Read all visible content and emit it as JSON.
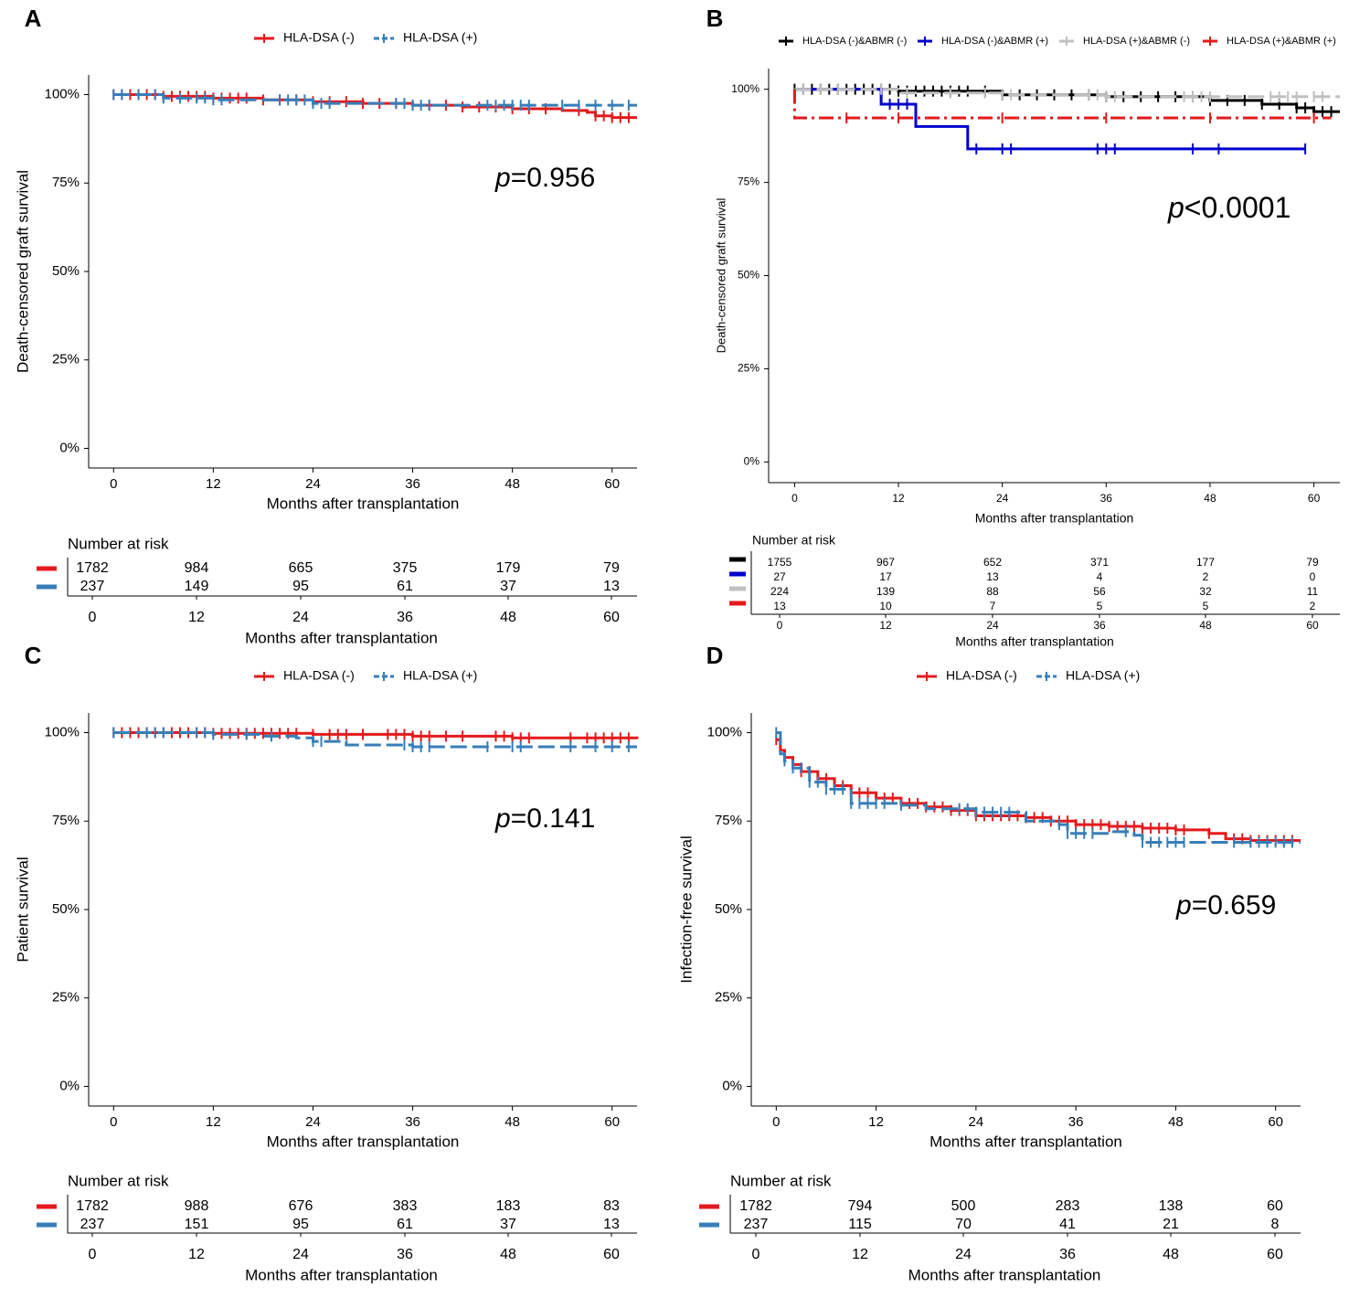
{
  "figure": {
    "colors": {
      "red": "#e41a1c",
      "blue_steel": "#377eb8",
      "black": "#000000",
      "blue": "#0000cc",
      "gray": "#c0c0c0"
    }
  },
  "chart_data": [
    {
      "panel": "A",
      "type": "line",
      "subtype": "kaplan-meier",
      "ylabel": "Death-censored graft survival",
      "xlabel": "Months after transplantation",
      "xticks": [
        0,
        12,
        24,
        36,
        48,
        60
      ],
      "xlim": [
        -3,
        63
      ],
      "yticks": [
        "0%",
        "25%",
        "50%",
        "75%",
        "100%"
      ],
      "ylim": [
        0,
        1
      ],
      "pvalue_prefix": "p",
      "pvalue_text": "=0.956",
      "risk_table_title": "Number at risk",
      "series": [
        {
          "name": "HLA-DSA (-)",
          "color": "#e41a1c",
          "dash": "solid",
          "points": [
            [
              0,
              1.0
            ],
            [
              6,
              0.995
            ],
            [
              12,
              0.99
            ],
            [
              18,
              0.985
            ],
            [
              24,
              0.98
            ],
            [
              30,
              0.975
            ],
            [
              36,
              0.97
            ],
            [
              42,
              0.965
            ],
            [
              48,
              0.96
            ],
            [
              54,
              0.955
            ],
            [
              57,
              0.95
            ],
            [
              58,
              0.94
            ],
            [
              60,
              0.935
            ],
            [
              63,
              0.935
            ]
          ],
          "censor_x": [
            0,
            1,
            2,
            3,
            4,
            5,
            6,
            7,
            8,
            9,
            10,
            11,
            12,
            13,
            14,
            15,
            16,
            18,
            20,
            22,
            24,
            26,
            28,
            30,
            32,
            34,
            36,
            38,
            40,
            42,
            44,
            46,
            48,
            50,
            52,
            56,
            58,
            59,
            60,
            61,
            62
          ],
          "risk": [
            "1782",
            "984",
            "665",
            "375",
            "179",
            "79"
          ]
        },
        {
          "name": "HLA-DSA (+)",
          "color": "#377eb8",
          "dash": "dash",
          "points": [
            [
              0,
              1.0
            ],
            [
              6,
              0.99
            ],
            [
              12,
              0.985
            ],
            [
              24,
              0.975
            ],
            [
              36,
              0.97
            ],
            [
              63,
              0.97
            ]
          ],
          "censor_x": [
            0,
            1,
            3,
            5,
            6,
            8,
            10,
            11,
            12,
            13,
            20,
            21,
            22,
            23,
            24,
            25,
            26,
            34,
            35,
            36,
            37,
            38,
            45,
            46,
            47,
            48,
            49,
            50,
            54,
            56,
            58,
            60,
            62
          ],
          "risk": [
            "237",
            "149",
            "95",
            "61",
            "37",
            "13"
          ]
        }
      ]
    },
    {
      "panel": "B",
      "type": "line",
      "subtype": "kaplan-meier",
      "ylabel": "Death-censored graft survival",
      "xlabel": "Months after transplantation",
      "xticks": [
        0,
        12,
        24,
        36,
        48,
        60
      ],
      "xlim": [
        -3,
        63
      ],
      "yticks": [
        "0%",
        "25%",
        "50%",
        "75%",
        "100%"
      ],
      "ylim": [
        0,
        1
      ],
      "pvalue_prefix": "p",
      "pvalue_text": "<0.0001",
      "risk_table_title": "Number at risk",
      "series": [
        {
          "name": "HLA-DSA (-)&ABMR (-)",
          "color": "#000000",
          "dash": "solid",
          "points": [
            [
              0,
              1.0
            ],
            [
              12,
              0.995
            ],
            [
              24,
              0.985
            ],
            [
              36,
              0.98
            ],
            [
              48,
              0.97
            ],
            [
              54,
              0.96
            ],
            [
              58,
              0.95
            ],
            [
              60,
              0.94
            ],
            [
              63,
              0.94
            ]
          ],
          "censor_x": [
            0,
            1,
            2,
            3,
            4,
            5,
            6,
            7,
            8,
            9,
            10,
            11,
            12,
            13,
            14,
            15,
            16,
            17,
            18,
            19,
            20,
            22,
            24,
            26,
            28,
            30,
            32,
            34,
            36,
            38,
            40,
            42,
            44,
            46,
            48,
            50,
            52,
            54,
            56,
            58,
            59,
            60,
            61,
            62
          ],
          "risk": [
            "1755",
            "967",
            "652",
            "371",
            "177",
            "79"
          ]
        },
        {
          "name": "HLA-DSA (-)&ABMR (+)",
          "color": "#0000cc",
          "dash": "solid",
          "points": [
            [
              0,
              1.0
            ],
            [
              10,
              1.0
            ],
            [
              10,
              0.96
            ],
            [
              14,
              0.96
            ],
            [
              14,
              0.9
            ],
            [
              20,
              0.9
            ],
            [
              20,
              0.84
            ],
            [
              59,
              0.84
            ]
          ],
          "censor_x": [
            11,
            12,
            13,
            21,
            24,
            25,
            35,
            36,
            37,
            46,
            49,
            59
          ],
          "risk": [
            "27",
            "17",
            "13",
            "4",
            "2",
            "0"
          ]
        },
        {
          "name": "HLA-DSA (+)&ABMR (-)",
          "color": "#c0c0c0",
          "dash": "dash",
          "points": [
            [
              0,
              1.0
            ],
            [
              12,
              0.99
            ],
            [
              24,
              0.985
            ],
            [
              36,
              0.98
            ],
            [
              63,
              0.98
            ]
          ],
          "censor_x": [
            1,
            3,
            5,
            10,
            13,
            18,
            22,
            24,
            25,
            34,
            35,
            36,
            37,
            45,
            46,
            47,
            48,
            55,
            56,
            57,
            58,
            60,
            61
          ],
          "risk": [
            "224",
            "139",
            "88",
            "56",
            "32",
            "11"
          ]
        },
        {
          "name": "HLA-DSA (+)&ABMR (+)",
          "color": "#e41a1c",
          "dash": "dashdot",
          "points": [
            [
              0,
              1.0
            ],
            [
              0,
              0.923
            ],
            [
              62,
              0.923
            ]
          ],
          "censor_x": [
            6,
            12,
            24,
            36,
            48,
            60
          ],
          "risk": [
            "13",
            "10",
            "7",
            "5",
            "5",
            "2"
          ]
        }
      ]
    },
    {
      "panel": "C",
      "type": "line",
      "subtype": "kaplan-meier",
      "ylabel": "Patient survival",
      "xlabel": "Months after transplantation",
      "xticks": [
        0,
        12,
        24,
        36,
        48,
        60
      ],
      "xlim": [
        -3,
        63
      ],
      "yticks": [
        "0%",
        "25%",
        "50%",
        "75%",
        "100%"
      ],
      "ylim": [
        0,
        1
      ],
      "pvalue_prefix": "p",
      "pvalue_text": "=0.141",
      "risk_table_title": "Number at risk",
      "series": [
        {
          "name": "HLA-DSA (-)",
          "color": "#e41a1c",
          "dash": "solid",
          "points": [
            [
              0,
              1.0
            ],
            [
              12,
              0.998
            ],
            [
              24,
              0.995
            ],
            [
              36,
              0.99
            ],
            [
              48,
              0.985
            ],
            [
              63,
              0.982
            ]
          ],
          "censor_x": [
            0,
            1,
            2,
            3,
            4,
            5,
            6,
            7,
            8,
            9,
            10,
            11,
            12,
            13,
            14,
            15,
            16,
            17,
            18,
            19,
            20,
            21,
            22,
            24,
            26,
            27,
            28,
            30,
            33,
            34,
            35,
            36,
            37,
            38,
            40,
            42,
            46,
            47,
            48,
            49,
            50,
            55,
            57,
            58,
            59,
            60,
            61,
            62
          ],
          "risk": [
            "1782",
            "988",
            "676",
            "383",
            "183",
            "83"
          ]
        },
        {
          "name": "HLA-DSA (+)",
          "color": "#377eb8",
          "dash": "dash",
          "points": [
            [
              0,
              1.0
            ],
            [
              12,
              0.995
            ],
            [
              18,
              0.99
            ],
            [
              22,
              0.985
            ],
            [
              24,
              0.975
            ],
            [
              28,
              0.965
            ],
            [
              36,
              0.96
            ],
            [
              63,
              0.96
            ]
          ],
          "censor_x": [
            0,
            4,
            5,
            6,
            10,
            11,
            12,
            16,
            19,
            24,
            25,
            35,
            36,
            37,
            38,
            45,
            48,
            49,
            55,
            58,
            60,
            62
          ],
          "risk": [
            "237",
            "151",
            "95",
            "61",
            "37",
            "13"
          ]
        }
      ]
    },
    {
      "panel": "D",
      "type": "line",
      "subtype": "kaplan-meier",
      "ylabel": "Infection-free survival",
      "xlabel": "Months after transplantation",
      "xticks": [
        0,
        12,
        24,
        36,
        48,
        60
      ],
      "xlim": [
        -3,
        63
      ],
      "yticks": [
        "0%",
        "25%",
        "50%",
        "75%",
        "100%"
      ],
      "ylim": [
        0,
        1
      ],
      "pvalue_prefix": "p",
      "pvalue_text": "=0.659",
      "risk_table_title": "Number at risk",
      "series": [
        {
          "name": "HLA-DSA (-)",
          "color": "#e41a1c",
          "dash": "solid",
          "points": [
            [
              0,
              0.98
            ],
            [
              0.5,
              0.95
            ],
            [
              1,
              0.93
            ],
            [
              2,
              0.91
            ],
            [
              3,
              0.89
            ],
            [
              5,
              0.87
            ],
            [
              7,
              0.85
            ],
            [
              9,
              0.83
            ],
            [
              12,
              0.815
            ],
            [
              15,
              0.8
            ],
            [
              18,
              0.79
            ],
            [
              21,
              0.78
            ],
            [
              24,
              0.765
            ],
            [
              30,
              0.76
            ],
            [
              33,
              0.75
            ],
            [
              36,
              0.74
            ],
            [
              40,
              0.735
            ],
            [
              44,
              0.73
            ],
            [
              48,
              0.725
            ],
            [
              52,
              0.715
            ],
            [
              54,
              0.7
            ],
            [
              57,
              0.695
            ],
            [
              63,
              0.695
            ]
          ],
          "censor_x": [
            0,
            1,
            2,
            3,
            4,
            5,
            6,
            7,
            8,
            9,
            10,
            11,
            12,
            13,
            14,
            15,
            16,
            17,
            18,
            19,
            20,
            21,
            22,
            23,
            24,
            25,
            26,
            27,
            28,
            29,
            30,
            31,
            32,
            33,
            34,
            35,
            36,
            37,
            38,
            39,
            40,
            41,
            42,
            43,
            44,
            45,
            46,
            47,
            48,
            49,
            52,
            55,
            56,
            57,
            58,
            59,
            60,
            61,
            62
          ],
          "risk": [
            "1782",
            "794",
            "500",
            "283",
            "138",
            "60"
          ]
        },
        {
          "name": "HLA-DSA (+)",
          "color": "#377eb8",
          "dash": "dash",
          "points": [
            [
              0,
              1.0
            ],
            [
              0.5,
              0.94
            ],
            [
              1,
              0.92
            ],
            [
              2,
              0.9
            ],
            [
              4,
              0.86
            ],
            [
              6,
              0.84
            ],
            [
              9,
              0.8
            ],
            [
              12,
              0.8
            ],
            [
              15,
              0.795
            ],
            [
              18,
              0.785
            ],
            [
              24,
              0.775
            ],
            [
              29,
              0.775
            ],
            [
              30,
              0.75
            ],
            [
              34,
              0.74
            ],
            [
              35,
              0.715
            ],
            [
              40,
              0.72
            ],
            [
              42,
              0.72
            ],
            [
              43,
              0.71
            ],
            [
              44,
              0.69
            ],
            [
              50,
              0.69
            ],
            [
              63,
              0.69
            ]
          ],
          "censor_x": [
            0,
            1,
            2,
            3,
            4,
            5,
            6,
            7,
            8,
            9,
            10,
            11,
            12,
            13,
            15,
            22,
            23,
            24,
            25,
            26,
            27,
            28,
            34,
            35,
            36,
            37,
            38,
            42,
            44,
            45,
            46,
            47,
            48,
            49,
            55,
            57,
            58,
            59,
            60,
            61,
            62
          ],
          "risk": [
            "237",
            "115",
            "70",
            "41",
            "21",
            "8"
          ]
        }
      ]
    }
  ]
}
